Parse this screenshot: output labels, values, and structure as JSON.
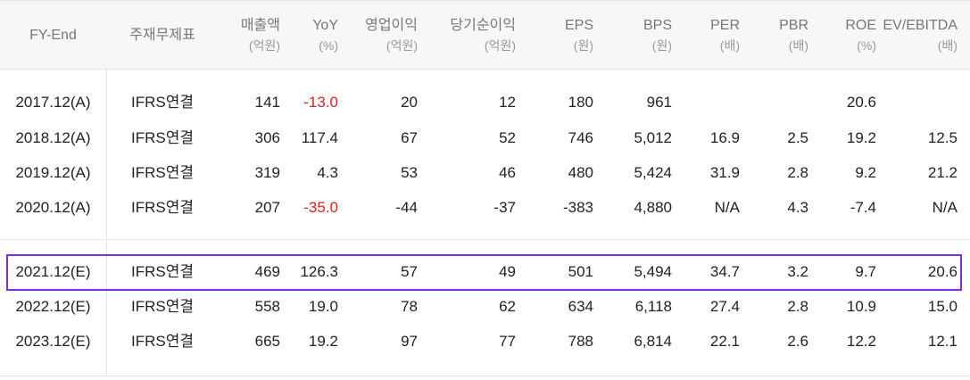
{
  "columns": [
    {
      "label": "FY-End",
      "unit": ""
    },
    {
      "label": "주재무제표",
      "unit": ""
    },
    {
      "label": "매출액",
      "unit": "(억원)"
    },
    {
      "label": "YoY",
      "unit": "(%)"
    },
    {
      "label": "영업이익",
      "unit": "(억원)"
    },
    {
      "label": "당기순이익",
      "unit": "(억원)"
    },
    {
      "label": "EPS",
      "unit": "(원)"
    },
    {
      "label": "BPS",
      "unit": "(원)"
    },
    {
      "label": "PER",
      "unit": "(배)"
    },
    {
      "label": "PBR",
      "unit": "(배)"
    },
    {
      "label": "ROE",
      "unit": "(%)"
    },
    {
      "label": "EV/EBITDA",
      "unit": "(배)"
    }
  ],
  "rows": [
    [
      "2017.12(A)",
      "IFRS연결",
      "141",
      "-13.0",
      "20",
      "12",
      "180",
      "961",
      "",
      "",
      "20.6",
      ""
    ],
    [
      "2018.12(A)",
      "IFRS연결",
      "306",
      "117.4",
      "67",
      "52",
      "746",
      "5,012",
      "16.9",
      "2.5",
      "19.2",
      "12.5"
    ],
    [
      "2019.12(A)",
      "IFRS연결",
      "319",
      "4.3",
      "53",
      "46",
      "480",
      "5,424",
      "31.9",
      "2.8",
      "9.2",
      "21.2"
    ],
    [
      "2020.12(A)",
      "IFRS연결",
      "207",
      "-35.0",
      "-44",
      "-37",
      "-383",
      "4,880",
      "N/A",
      "4.3",
      "-7.4",
      "N/A"
    ],
    [
      "2021.12(E)",
      "IFRS연결",
      "469",
      "126.3",
      "57",
      "49",
      "501",
      "5,494",
      "34.7",
      "3.2",
      "9.7",
      "20.6"
    ],
    [
      "2022.12(E)",
      "IFRS연결",
      "558",
      "19.0",
      "78",
      "62",
      "634",
      "6,118",
      "27.4",
      "2.8",
      "10.9",
      "15.0"
    ],
    [
      "2023.12(E)",
      "IFRS연결",
      "665",
      "19.2",
      "97",
      "77",
      "788",
      "6,814",
      "22.1",
      "2.6",
      "12.2",
      "12.1"
    ]
  ],
  "negative_color": "#e02020",
  "highlight_color": "#7b2fe0",
  "highlighted_row": "2021.12(E)"
}
